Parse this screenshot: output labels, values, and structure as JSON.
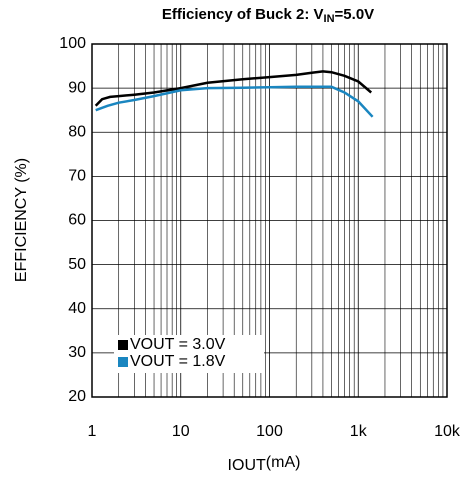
{
  "chart_data": {
    "type": "line",
    "title_parts": [
      "Efficiency of Buck 2: V",
      "IN",
      "=5.0V"
    ],
    "xlabel_parts": [
      "I",
      "OUT",
      "(mA)"
    ],
    "ylabel": "EFFICIENCY (%)",
    "xscale": "log",
    "grid": true,
    "minor_grid": true,
    "legend": "lower left",
    "xlim": [
      1,
      10000
    ],
    "ylim": [
      20,
      100
    ],
    "xticks": [
      1,
      10,
      100,
      {
        "value": 1000,
        "label": "1k"
      },
      {
        "value": 10000,
        "label": "10k"
      }
    ],
    "yticks": [
      20,
      30,
      40,
      50,
      60,
      70,
      80,
      90,
      100
    ],
    "series": [
      {
        "name": "VOUT = 3.0V",
        "color": "#000000",
        "x": [
          1.1,
          1.3,
          1.6,
          2,
          3,
          5,
          10,
          20,
          50,
          100,
          200,
          300,
          400,
          500,
          700,
          1000,
          1400
        ],
        "values": [
          86,
          87.5,
          88,
          88.2,
          88.5,
          89,
          90,
          91.2,
          92,
          92.5,
          93,
          93.5,
          93.8,
          93.6,
          92.8,
          91.5,
          89
        ]
      },
      {
        "name": "VOUT = 1.8V",
        "color": "#1a86c0",
        "x": [
          1.1,
          1.5,
          2,
          3,
          5,
          10,
          20,
          50,
          100,
          200,
          500,
          700,
          1000,
          1450
        ],
        "values": [
          85,
          86,
          86.7,
          87.3,
          88.2,
          89.5,
          90,
          90.1,
          90.2,
          90.3,
          90.3,
          89,
          87,
          83.5
        ]
      }
    ]
  }
}
